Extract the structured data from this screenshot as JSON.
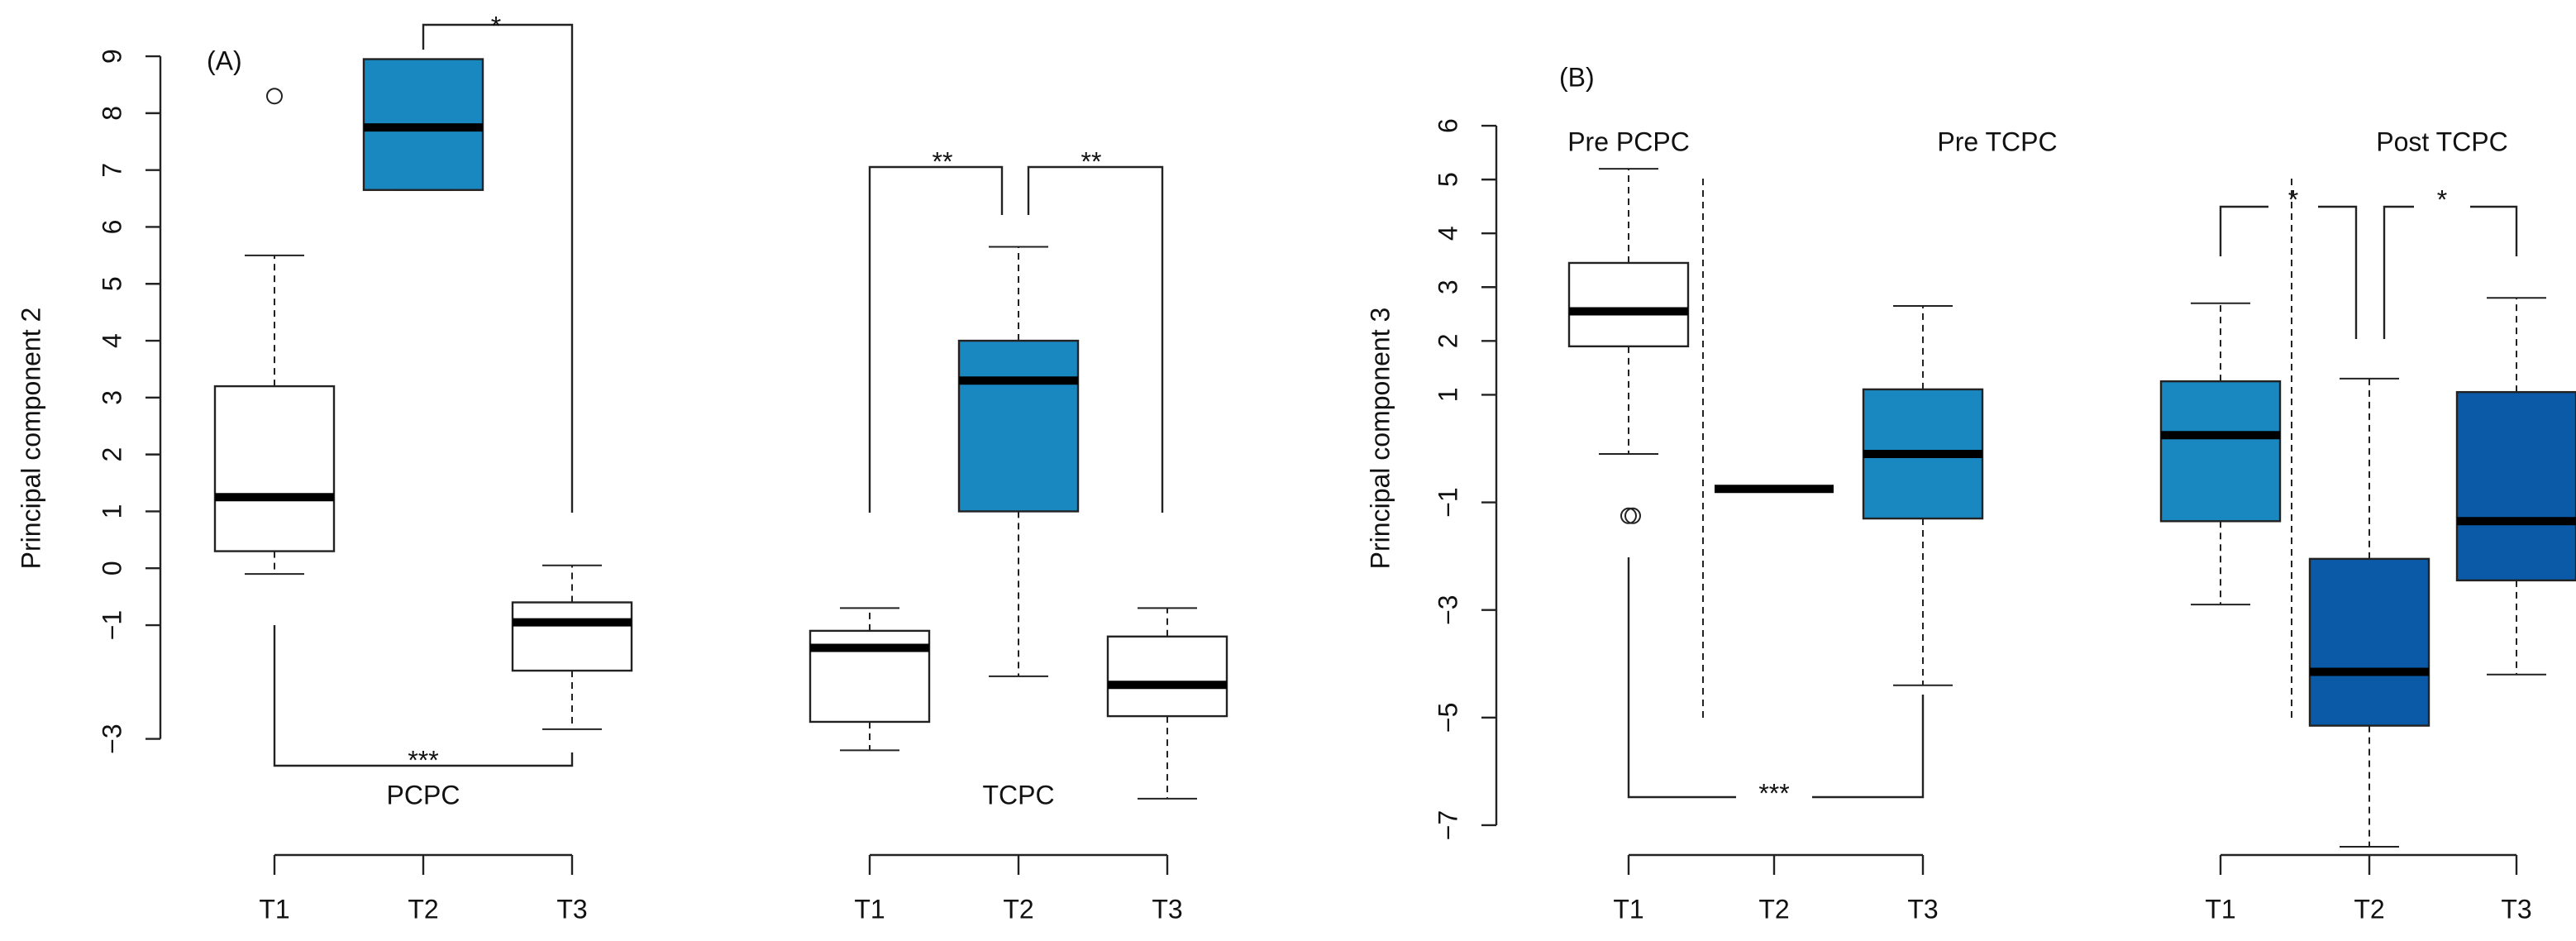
{
  "chart_data": [
    {
      "type": "box",
      "title": "(A)",
      "y_label": "Principal component 2",
      "ylim": [
        -3.5,
        9.6
      ],
      "yticks": [
        {
          "value": -3,
          "label": "−3"
        },
        {
          "value": -1,
          "label": "−1"
        },
        0,
        1,
        2,
        3,
        4,
        5,
        6,
        7,
        8,
        9
      ],
      "groups": [
        {
          "name": "PCPC",
          "categories": [
            "T1",
            "T2",
            "T3"
          ],
          "boxes": [
            {
              "whislo": -0.1,
              "q1": 0.3,
              "med": 1.25,
              "q3": 3.2,
              "whishi": 5.5,
              "fliers": [
                8.3
              ],
              "color": "#ffffff"
            },
            {
              "whislo": 6.65,
              "q1": 6.65,
              "med": 7.75,
              "q3": 8.95,
              "whishi": 8.95,
              "fliers": [],
              "color": "#1a88c0"
            },
            {
              "whislo": -2.83,
              "q1": -1.8,
              "med": -0.95,
              "q3": -0.6,
              "whishi": 0.05,
              "fliers": [],
              "color": "#ffffff"
            }
          ]
        },
        {
          "name": "TCPC",
          "categories": [
            "T1",
            "T2",
            "T3"
          ],
          "boxes": [
            {
              "whislo": -3.2,
              "q1": -2.7,
              "med": -1.4,
              "q3": -1.1,
              "whishi": -0.7,
              "fliers": [],
              "color": "#ffffff"
            },
            {
              "whislo": -1.9,
              "q1": 1.0,
              "med": 3.3,
              "q3": 4.0,
              "whishi": 5.65,
              "fliers": [],
              "color": "#1a88c0"
            },
            {
              "whislo": -4.05,
              "q1": -2.6,
              "med": -2.05,
              "q3": -1.2,
              "whishi": -0.7,
              "fliers": [],
              "color": "#ffffff"
            }
          ]
        }
      ],
      "annotations": [
        "*",
        "**",
        "**",
        "***"
      ]
    },
    {
      "type": "box",
      "title": "(B)",
      "y_label": "Principal component 3",
      "ylim": [
        -7.6,
        6.6
      ],
      "yticks": [
        {
          "value": -7,
          "label": "−7"
        },
        {
          "value": -5,
          "label": "−5"
        },
        {
          "value": -3,
          "label": "−3"
        },
        {
          "value": -1,
          "label": "−1"
        },
        1,
        2,
        3,
        4,
        5,
        6
      ],
      "groups": [
        {
          "categories": [
            "T1",
            "T2",
            "T3"
          ],
          "boxes": [
            {
              "whislo": -0.1,
              "q1": 1.9,
              "med": 2.55,
              "q3": 3.45,
              "whishi": 5.2,
              "fliers": [
                -1.25,
                -1.25
              ],
              "color": "#ffffff"
            },
            {
              "whislo": -0.75,
              "q1": -0.75,
              "med": -0.75,
              "q3": -0.75,
              "whishi": -0.75,
              "fliers": [],
              "color": "#ffffff"
            },
            {
              "whislo": -4.4,
              "q1": -1.3,
              "med": -0.1,
              "q3": 1.1,
              "whishi": 2.65,
              "fliers": [],
              "color": "#1a88c0"
            }
          ]
        },
        {
          "categories": [
            "T1",
            "T2",
            "T3"
          ],
          "boxes": [
            {
              "whislo": -2.9,
              "q1": -1.35,
              "med": 0.25,
              "q3": 1.25,
              "whishi": 2.7,
              "fliers": [],
              "color": "#1a88c0"
            },
            {
              "whislo": -7.4,
              "q1": -5.15,
              "med": -4.15,
              "q3": -2.05,
              "whishi": 1.3,
              "fliers": [],
              "color": "#0a5aa8"
            },
            {
              "whislo": -4.2,
              "q1": -2.45,
              "med": -1.35,
              "q3": 1.05,
              "whishi": 2.8,
              "fliers": [],
              "color": "#0a5aa8"
            }
          ]
        }
      ],
      "annotations": [
        "Pre PCPC",
        "Pre TCPC",
        "Post TCPC",
        "*",
        "*",
        "***"
      ]
    }
  ]
}
